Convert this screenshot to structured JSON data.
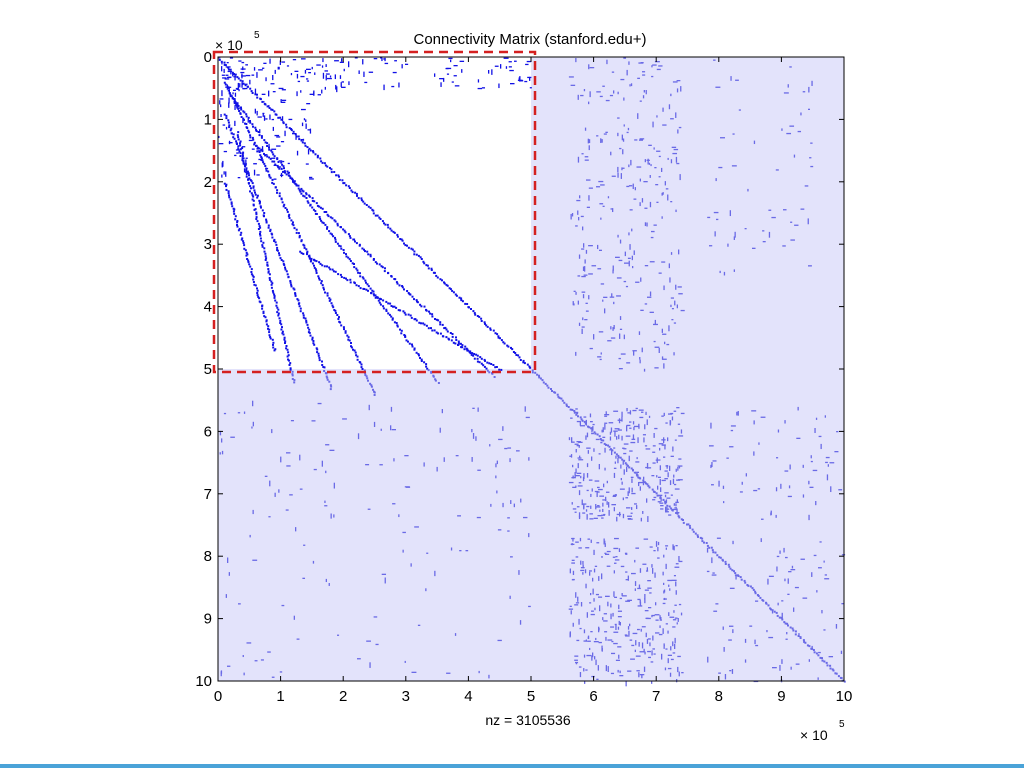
{
  "chart_data": {
    "type": "heatmap",
    "subtype": "sparsity-pattern",
    "title": "Connectivity Matrix (stanford.edu+)",
    "xlabel": "nz = 3105536",
    "ylabel": "",
    "xlim": [
      0,
      10
    ],
    "ylim": [
      0,
      10
    ],
    "y_axis_reversed": true,
    "x_ticks": [
      "0",
      "1",
      "2",
      "3",
      "4",
      "5",
      "6",
      "7",
      "8",
      "9",
      "10"
    ],
    "y_ticks": [
      "0",
      "1",
      "2",
      "3",
      "4",
      "5",
      "6",
      "7",
      "8",
      "9",
      "10"
    ],
    "x_multiplier": "× 10",
    "y_multiplier": "× 10",
    "multiplier_exponent": "5",
    "grid": false,
    "colors": {
      "background": "#e3e3fb",
      "dots": "#6a6ae6",
      "dark_dots": "#1111e6",
      "highlight_fill": "#ffffff",
      "highlight_border": "#d42020"
    },
    "highlight_region": {
      "x": [
        0,
        5
      ],
      "y": [
        0,
        5
      ]
    },
    "dense_blocks": [
      {
        "x": [
          0,
          0.55
        ],
        "y": [
          0,
          0.6
        ],
        "density": 0.9
      },
      {
        "x": [
          0.55,
          2
        ],
        "y": [
          0,
          0.6
        ],
        "density": 0.45
      },
      {
        "x": [
          2,
          3.1
        ],
        "y": [
          0,
          0.5
        ],
        "density": 0.25
      },
      {
        "x": [
          3.3,
          5
        ],
        "y": [
          0,
          0.5
        ],
        "density": 0.3
      },
      {
        "x": [
          0,
          1.5
        ],
        "y": [
          0.6,
          2
        ],
        "density": 0.3
      },
      {
        "x": [
          5.6,
          7.4
        ],
        "y": [
          0,
          5
        ],
        "density": 0.2
      },
      {
        "x": [
          7.8,
          9.5
        ],
        "y": [
          0,
          3.5
        ],
        "density": 0.06
      },
      {
        "x": [
          5.6,
          7.4
        ],
        "y": [
          5.6,
          7.4
        ],
        "density": 0.6
      },
      {
        "x": [
          5.6,
          7.4
        ],
        "y": [
          7.7,
          10
        ],
        "density": 0.45
      },
      {
        "x": [
          7.8,
          10
        ],
        "y": [
          5.6,
          7.4
        ],
        "density": 0.1
      },
      {
        "x": [
          7.8,
          10
        ],
        "y": [
          7.7,
          10
        ],
        "density": 0.1
      },
      {
        "x": [
          0,
          5
        ],
        "y": [
          5.5,
          7.4
        ],
        "density": 0.06
      },
      {
        "x": [
          0,
          5
        ],
        "y": [
          7.5,
          10
        ],
        "density": 0.03
      }
    ],
    "diagonal_lines": [
      {
        "from": [
          0,
          0
        ],
        "to": [
          10,
          10
        ]
      },
      {
        "from": [
          0.1,
          0.4
        ],
        "to": [
          2.5,
          5.4
        ]
      },
      {
        "from": [
          0.2,
          0.6
        ],
        "to": [
          3.5,
          5.2
        ]
      },
      {
        "from": [
          0.1,
          0.9
        ],
        "to": [
          1.8,
          5.3
        ]
      },
      {
        "from": [
          0.3,
          1.2
        ],
        "to": [
          1.2,
          5.2
        ]
      },
      {
        "from": [
          0.6,
          1.4
        ],
        "to": [
          4.4,
          5.1
        ]
      },
      {
        "from": [
          0.1,
          2.0
        ],
        "to": [
          0.9,
          4.7
        ]
      },
      {
        "from": [
          1.3,
          3.1
        ],
        "to": [
          4.5,
          5.0
        ]
      }
    ]
  }
}
